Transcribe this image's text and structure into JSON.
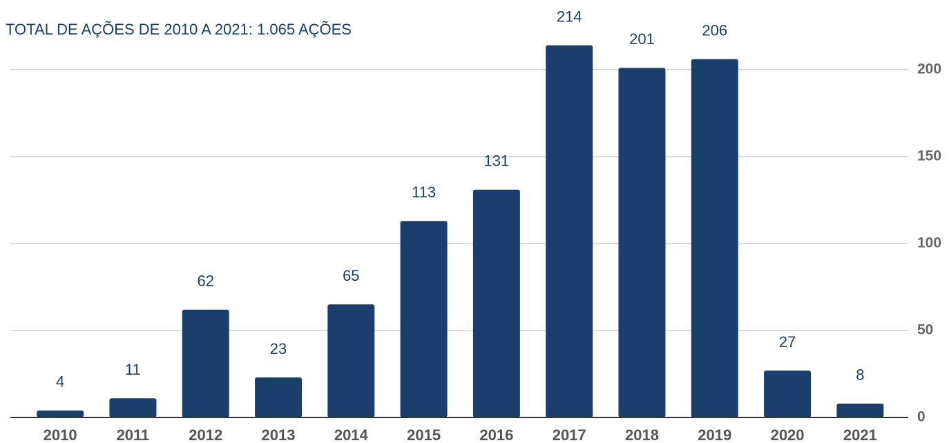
{
  "chart_data": {
    "type": "bar",
    "title": "TOTAL DE AÇÕES DE 2010 A 2021: 1.065 AÇÕES",
    "categories": [
      "2010",
      "2011",
      "2012",
      "2013",
      "2014",
      "2015",
      "2016",
      "2017",
      "2018",
      "2019",
      "2020",
      "2021"
    ],
    "values": [
      4,
      11,
      62,
      23,
      65,
      113,
      131,
      214,
      201,
      206,
      27,
      8
    ],
    "color": "#1a3f6c",
    "ylim": [
      0,
      233.3
    ],
    "yticks": [
      0,
      50,
      100,
      150,
      200
    ],
    "grid": true,
    "y_axis_side": "right"
  }
}
